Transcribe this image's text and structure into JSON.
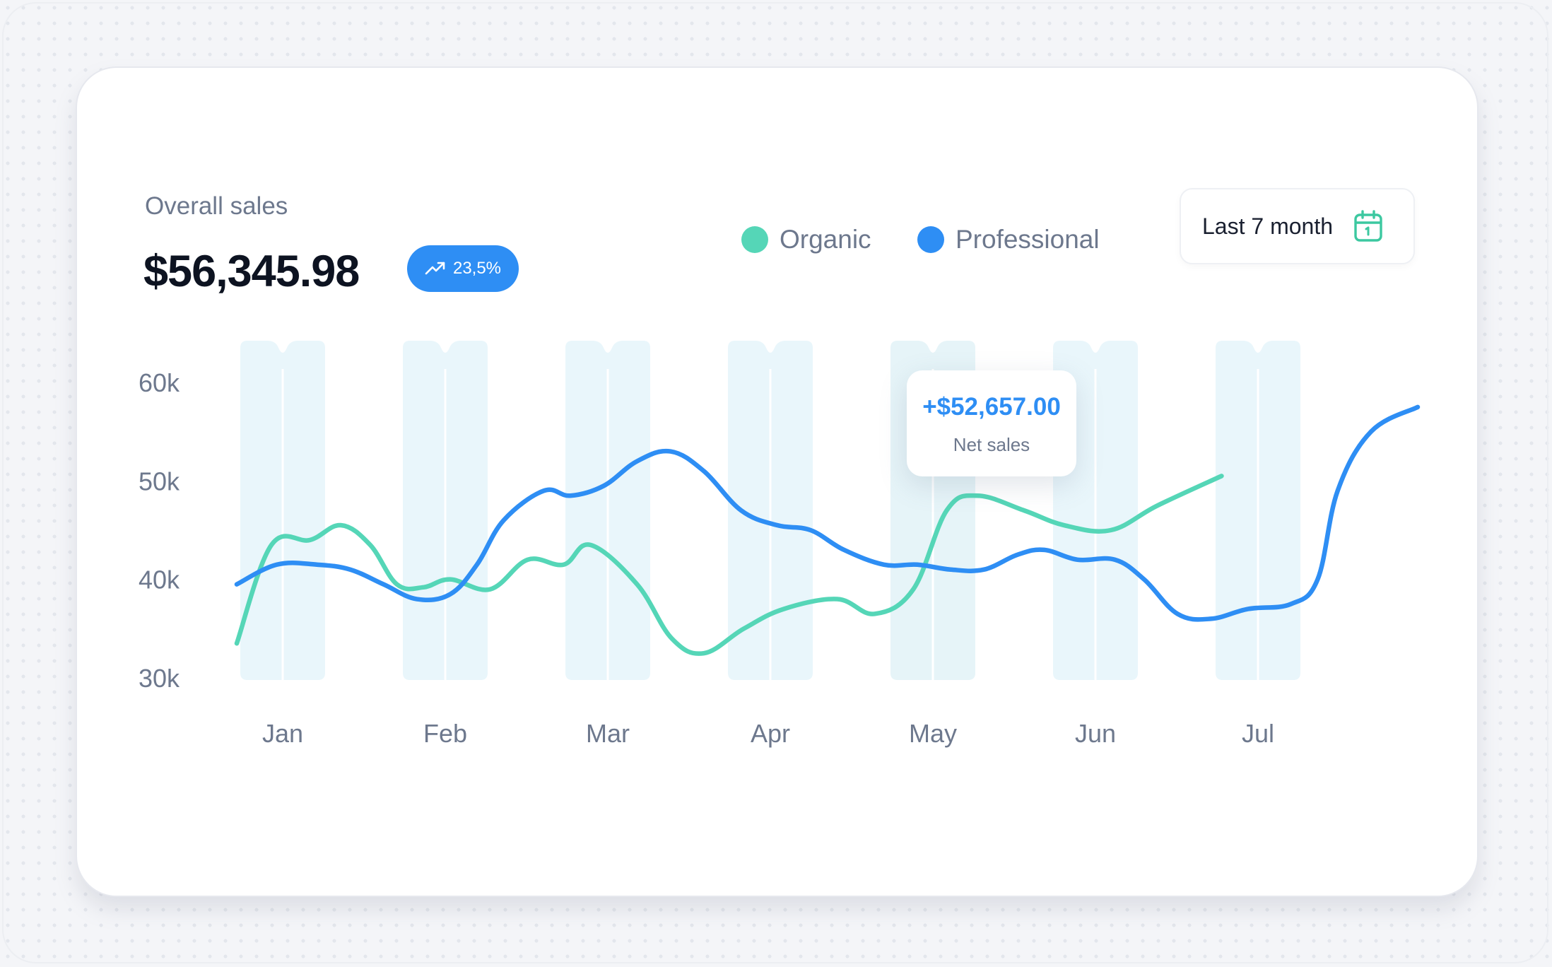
{
  "header": {
    "title": "Overall sales",
    "amount": "$56,345.98",
    "badge": "23,5%"
  },
  "legend": [
    {
      "label": "Organic",
      "color": "#55d6b7"
    },
    {
      "label": "Professional",
      "color": "#2e8ef4"
    }
  ],
  "date_filter": {
    "label": "Last 7 month",
    "icon": "calendar-icon"
  },
  "tooltip": {
    "value": "+$52,657.00",
    "label": "Net sales"
  },
  "chart_data": {
    "type": "line",
    "categories": [
      "Jan",
      "Feb",
      "Mar",
      "Apr",
      "May",
      "Jun",
      "Jul"
    ],
    "y_ticks": [
      "60k",
      "50k",
      "40k",
      "30k"
    ],
    "ylim": [
      30000,
      60000
    ],
    "grid": false,
    "legend_position": "top",
    "series": [
      {
        "name": "Organic",
        "color": "#55d6b7",
        "points": [
          [
            0.0,
            33500
          ],
          [
            0.26,
            43500
          ],
          [
            0.55,
            44000
          ],
          [
            0.78,
            45500
          ],
          [
            1.0,
            43500
          ],
          [
            1.2,
            39500
          ],
          [
            1.4,
            39200
          ],
          [
            1.6,
            40000
          ],
          [
            1.9,
            39000
          ],
          [
            2.18,
            42000
          ],
          [
            2.45,
            41500
          ],
          [
            2.65,
            43500
          ],
          [
            3.0,
            39500
          ],
          [
            3.26,
            34000
          ],
          [
            3.5,
            32500
          ],
          [
            3.8,
            35000
          ],
          [
            4.1,
            37000
          ],
          [
            4.5,
            38000
          ],
          [
            4.78,
            36500
          ],
          [
            5.07,
            39000
          ],
          [
            5.32,
            47000
          ],
          [
            5.55,
            48500
          ],
          [
            5.9,
            47000
          ],
          [
            6.2,
            45500
          ],
          [
            6.55,
            45000
          ],
          [
            6.9,
            47500
          ],
          [
            7.38,
            50500
          ]
        ]
      },
      {
        "name": "Professional",
        "color": "#2e8ef4",
        "points": [
          [
            0.0,
            39500
          ],
          [
            0.3,
            41500
          ],
          [
            0.6,
            41500
          ],
          [
            0.85,
            41000
          ],
          [
            1.1,
            39500
          ],
          [
            1.35,
            38000
          ],
          [
            1.6,
            38500
          ],
          [
            1.8,
            41500
          ],
          [
            2.0,
            46000
          ],
          [
            2.3,
            49000
          ],
          [
            2.5,
            48500
          ],
          [
            2.75,
            49500
          ],
          [
            3.0,
            52000
          ],
          [
            3.25,
            53000
          ],
          [
            3.5,
            51000
          ],
          [
            3.78,
            47000
          ],
          [
            4.05,
            45500
          ],
          [
            4.3,
            45000
          ],
          [
            4.55,
            43000
          ],
          [
            4.85,
            41500
          ],
          [
            5.1,
            41500
          ],
          [
            5.35,
            41000
          ],
          [
            5.6,
            41000
          ],
          [
            5.85,
            42500
          ],
          [
            6.05,
            43000
          ],
          [
            6.3,
            42000
          ],
          [
            6.58,
            42000
          ],
          [
            6.8,
            40000
          ],
          [
            7.05,
            36500
          ],
          [
            7.3,
            36000
          ],
          [
            7.58,
            37000
          ],
          [
            7.9,
            37500
          ],
          [
            8.1,
            40000
          ],
          [
            8.25,
            49000
          ],
          [
            8.5,
            55000
          ],
          [
            8.85,
            57500
          ]
        ]
      }
    ],
    "x_domain": [
      0,
      8.85
    ]
  }
}
